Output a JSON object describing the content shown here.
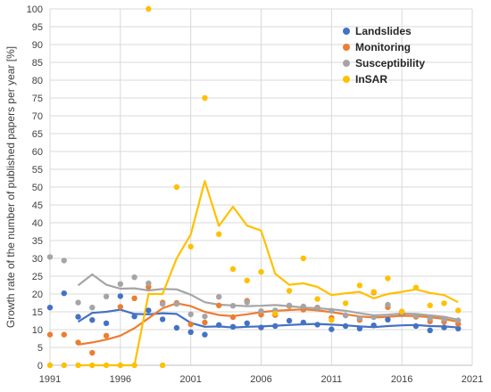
{
  "chart_data": {
    "type": "scatter",
    "title": "",
    "xlabel": "",
    "ylabel": "Growth rate of the number of published papers per year [%]",
    "xlim": [
      1991,
      2021
    ],
    "ylim": [
      0,
      100
    ],
    "x_ticks": [
      1991,
      1996,
      2001,
      2006,
      2011,
      2016,
      2021
    ],
    "y_ticks": [
      0,
      5,
      10,
      15,
      20,
      25,
      30,
      35,
      40,
      45,
      50,
      55,
      60,
      65,
      70,
      75,
      80,
      85,
      90,
      95,
      100
    ],
    "grid": true,
    "legend_position": "top-right",
    "series": [
      {
        "name": "Landslides",
        "color": "#4472C4",
        "points": [
          [
            1991,
            16.2
          ],
          [
            1992,
            20.2
          ],
          [
            1993,
            13.6
          ],
          [
            1994,
            12.7
          ],
          [
            1995,
            11.8
          ],
          [
            1996,
            19.4
          ],
          [
            1997,
            13.7
          ],
          [
            1998,
            15.4
          ],
          [
            1999,
            12.9
          ],
          [
            2000,
            10.5
          ],
          [
            2001,
            9.3
          ],
          [
            2002,
            8.6
          ],
          [
            2003,
            11.3
          ],
          [
            2004,
            10.8
          ],
          [
            2005,
            11.8
          ],
          [
            2006,
            10.6
          ],
          [
            2007,
            11.0
          ],
          [
            2008,
            12.5
          ],
          [
            2009,
            12.0
          ],
          [
            2010,
            11.4
          ],
          [
            2011,
            10.1
          ],
          [
            2012,
            11.0
          ],
          [
            2013,
            10.3
          ],
          [
            2014,
            11.2
          ],
          [
            2015,
            12.8
          ],
          [
            2016,
            14.4
          ],
          [
            2017,
            11.0
          ],
          [
            2018,
            9.8
          ],
          [
            2019,
            10.6
          ],
          [
            2020,
            10.3
          ]
        ],
        "trend": [
          [
            1993,
            12.2
          ],
          [
            1994,
            14.7
          ],
          [
            1995,
            15.0
          ],
          [
            1996,
            15.6
          ],
          [
            1997,
            14.4
          ],
          [
            1998,
            14.3
          ],
          [
            1999,
            14.6
          ],
          [
            2000,
            14.4
          ],
          [
            2001,
            11.9
          ],
          [
            2002,
            10.8
          ],
          [
            2003,
            10.9
          ],
          [
            2004,
            10.6
          ],
          [
            2005,
            10.8
          ],
          [
            2006,
            10.9
          ],
          [
            2007,
            11.1
          ],
          [
            2008,
            11.3
          ],
          [
            2009,
            11.5
          ],
          [
            2010,
            11.6
          ],
          [
            2011,
            11.4
          ],
          [
            2012,
            11.2
          ],
          [
            2013,
            10.9
          ],
          [
            2014,
            10.7
          ],
          [
            2015,
            11.0
          ],
          [
            2016,
            11.2
          ],
          [
            2017,
            11.3
          ],
          [
            2018,
            11.0
          ],
          [
            2019,
            10.9
          ],
          [
            2020,
            10.6
          ]
        ]
      },
      {
        "name": "Monitoring",
        "color": "#ED7D31",
        "points": [
          [
            1991,
            8.6
          ],
          [
            1992,
            8.6
          ],
          [
            1993,
            6.4
          ],
          [
            1994,
            3.5
          ],
          [
            1995,
            8.3
          ],
          [
            1996,
            16.4
          ],
          [
            1997,
            18.8
          ],
          [
            1998,
            22.0
          ],
          [
            1999,
            17.6
          ],
          [
            2000,
            17.5
          ],
          [
            2001,
            11.5
          ],
          [
            2002,
            12.0
          ],
          [
            2003,
            16.8
          ],
          [
            2004,
            13.5
          ],
          [
            2005,
            18.1
          ],
          [
            2006,
            14.2
          ],
          [
            2007,
            14.1
          ],
          [
            2008,
            16.6
          ],
          [
            2009,
            15.6
          ],
          [
            2010,
            16.2
          ],
          [
            2011,
            13.3
          ],
          [
            2012,
            14.0
          ],
          [
            2013,
            12.7
          ],
          [
            2014,
            20.4
          ],
          [
            2015,
            16.3
          ],
          [
            2016,
            14.5
          ],
          [
            2017,
            13.6
          ],
          [
            2018,
            12.3
          ],
          [
            2019,
            12.2
          ],
          [
            2020,
            11.6
          ]
        ],
        "trend": [
          [
            1993,
            5.8
          ],
          [
            1994,
            6.4
          ],
          [
            1995,
            7.2
          ],
          [
            1996,
            8.3
          ],
          [
            1997,
            10.4
          ],
          [
            1998,
            13.2
          ],
          [
            1999,
            16.0
          ],
          [
            2000,
            17.4
          ],
          [
            2001,
            16.6
          ],
          [
            2002,
            15.0
          ],
          [
            2003,
            14.1
          ],
          [
            2004,
            13.8
          ],
          [
            2005,
            14.3
          ],
          [
            2006,
            14.9
          ],
          [
            2007,
            15.3
          ],
          [
            2008,
            15.5
          ],
          [
            2009,
            15.7
          ],
          [
            2010,
            15.4
          ],
          [
            2011,
            14.9
          ],
          [
            2012,
            14.3
          ],
          [
            2013,
            13.7
          ],
          [
            2014,
            13.4
          ],
          [
            2015,
            13.6
          ],
          [
            2016,
            13.9
          ],
          [
            2017,
            13.8
          ],
          [
            2018,
            13.5
          ],
          [
            2019,
            13.0
          ],
          [
            2020,
            12.2
          ]
        ]
      },
      {
        "name": "Susceptibility",
        "color": "#A5A5A5",
        "points": [
          [
            1991,
            30.4
          ],
          [
            1992,
            29.4
          ],
          [
            1993,
            17.6
          ],
          [
            1994,
            16.2
          ],
          [
            1995,
            19.3
          ],
          [
            1996,
            22.8
          ],
          [
            1997,
            24.7
          ],
          [
            1998,
            23.0
          ],
          [
            1999,
            17.2
          ],
          [
            2000,
            17.2
          ],
          [
            2001,
            14.3
          ],
          [
            2002,
            13.7
          ],
          [
            2003,
            19.2
          ],
          [
            2004,
            16.7
          ],
          [
            2005,
            17.7
          ],
          [
            2006,
            15.2
          ],
          [
            2007,
            15.4
          ],
          [
            2008,
            16.8
          ],
          [
            2009,
            16.5
          ],
          [
            2010,
            16.2
          ],
          [
            2011,
            15.3
          ],
          [
            2012,
            14.0
          ],
          [
            2013,
            13.2
          ],
          [
            2014,
            13.5
          ],
          [
            2015,
            17.0
          ],
          [
            2016,
            14.9
          ],
          [
            2017,
            13.9
          ],
          [
            2018,
            13.1
          ],
          [
            2019,
            12.9
          ],
          [
            2020,
            12.6
          ]
        ],
        "trend": [
          [
            1993,
            22.4
          ],
          [
            1994,
            25.5
          ],
          [
            1995,
            22.6
          ],
          [
            1996,
            21.5
          ],
          [
            1997,
            21.6
          ],
          [
            1998,
            21.0
          ],
          [
            1999,
            21.4
          ],
          [
            2000,
            21.3
          ],
          [
            2001,
            19.8
          ],
          [
            2002,
            17.7
          ],
          [
            2003,
            17.0
          ],
          [
            2004,
            16.8
          ],
          [
            2005,
            16.6
          ],
          [
            2006,
            16.7
          ],
          [
            2007,
            16.9
          ],
          [
            2008,
            16.6
          ],
          [
            2009,
            16.2
          ],
          [
            2010,
            16.0
          ],
          [
            2011,
            15.7
          ],
          [
            2012,
            15.3
          ],
          [
            2013,
            14.6
          ],
          [
            2014,
            14.0
          ],
          [
            2015,
            14.2
          ],
          [
            2016,
            14.5
          ],
          [
            2017,
            14.4
          ],
          [
            2018,
            14.0
          ],
          [
            2019,
            13.6
          ],
          [
            2020,
            12.8
          ]
        ]
      },
      {
        "name": "InSAR",
        "color": "#FFC000",
        "points": [
          [
            1991,
            0
          ],
          [
            1992,
            0
          ],
          [
            1993,
            0
          ],
          [
            1994,
            0
          ],
          [
            1995,
            0
          ],
          [
            1996,
            0
          ],
          [
            1997,
            0
          ],
          [
            1998,
            100
          ],
          [
            1999,
            0
          ],
          [
            2000,
            50.0
          ],
          [
            2001,
            33.3
          ],
          [
            2002,
            75.0
          ],
          [
            2003,
            36.8
          ],
          [
            2004,
            27.0
          ],
          [
            2005,
            23.8
          ],
          [
            2006,
            26.2
          ],
          [
            2007,
            14.5
          ],
          [
            2008,
            20.9
          ],
          [
            2009,
            30.0
          ],
          [
            2010,
            18.6
          ],
          [
            2011,
            12.7
          ],
          [
            2012,
            17.4
          ],
          [
            2013,
            22.4
          ],
          [
            2014,
            20.6
          ],
          [
            2015,
            24.4
          ],
          [
            2016,
            15.1
          ],
          [
            2017,
            21.8
          ],
          [
            2018,
            16.8
          ],
          [
            2019,
            17.4
          ],
          [
            2020,
            15.4
          ]
        ],
        "trend": [
          [
            1993,
            0
          ],
          [
            1994,
            0
          ],
          [
            1995,
            0
          ],
          [
            1996,
            0
          ],
          [
            1997,
            0
          ],
          [
            1998,
            20.0
          ],
          [
            1999,
            20.0
          ],
          [
            2000,
            30.0
          ],
          [
            2001,
            36.7
          ],
          [
            2002,
            51.7
          ],
          [
            2003,
            39.1
          ],
          [
            2004,
            44.5
          ],
          [
            2005,
            39.2
          ],
          [
            2006,
            37.8
          ],
          [
            2007,
            25.7
          ],
          [
            2008,
            22.6
          ],
          [
            2009,
            23.0
          ],
          [
            2010,
            22.0
          ],
          [
            2011,
            19.7
          ],
          [
            2012,
            20.2
          ],
          [
            2013,
            20.6
          ],
          [
            2014,
            18.8
          ],
          [
            2015,
            20.0
          ],
          [
            2016,
            20.6
          ],
          [
            2017,
            21.3
          ],
          [
            2018,
            20.3
          ],
          [
            2019,
            19.7
          ],
          [
            2020,
            17.7
          ]
        ]
      }
    ]
  }
}
